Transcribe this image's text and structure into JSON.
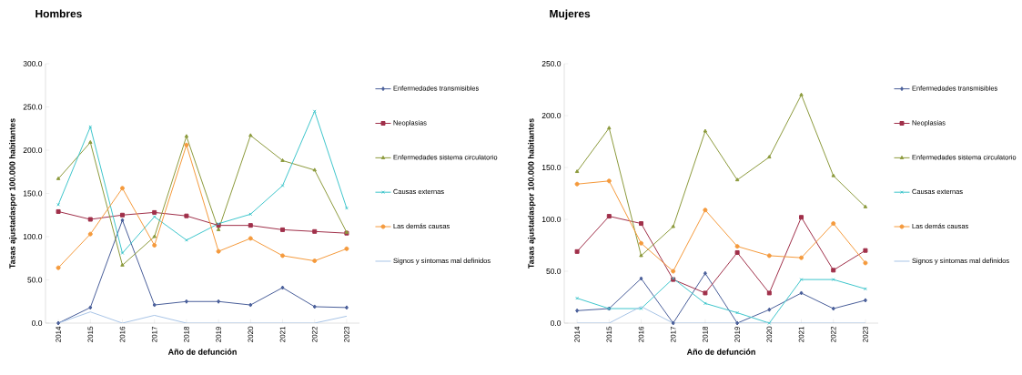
{
  "chart_data": [
    {
      "type": "line",
      "title": "Hombres",
      "xlabel": "Año de defunción",
      "ylabel": "Tasas ajustadaspor 100.000 habitantes",
      "categories": [
        "2014",
        "2015",
        "2016",
        "2017",
        "2018",
        "2019",
        "2020",
        "2021",
        "2022",
        "2023"
      ],
      "ylim": [
        0,
        300
      ],
      "yticks": [
        {
          "value": 0,
          "label": "0.0"
        },
        {
          "value": 50,
          "label": "50.0"
        },
        {
          "value": 100,
          "label": "100.0"
        },
        {
          "value": 150,
          "label": "150.0"
        },
        {
          "value": 200,
          "label": "200.0"
        },
        {
          "value": 250,
          "label": "250.0"
        },
        {
          "value": 300,
          "label": "300.0"
        }
      ],
      "grid": false,
      "legend": "right",
      "series": [
        {
          "name": "Enfermedades transmisibles",
          "color": "#4a5f9a",
          "marker": "diamond",
          "values": [
            0,
            18,
            119,
            21,
            25,
            25,
            21,
            41,
            19,
            18
          ]
        },
        {
          "name": "Neoplasias",
          "color": "#a0304a",
          "marker": "square",
          "values": [
            129,
            120,
            125,
            128,
            124,
            113,
            113,
            108,
            106,
            104
          ]
        },
        {
          "name": "Enfermedades sistema circulatorio",
          "color": "#8c9a3c",
          "marker": "triangle",
          "values": [
            167,
            209,
            67,
            100,
            216,
            108,
            217,
            188,
            177,
            105
          ]
        },
        {
          "name": "Causas externas",
          "color": "#3fc6cc",
          "marker": "cross",
          "values": [
            137,
            227,
            81,
            123,
            96,
            115,
            126,
            159,
            245,
            133
          ]
        },
        {
          "name": "Las demás causas",
          "color": "#f59a3c",
          "marker": "circle",
          "values": [
            64,
            103,
            156,
            90,
            206,
            83,
            98,
            78,
            72,
            86
          ]
        },
        {
          "name": "Signos y síntomas mal definidos",
          "color": "#a8c4e6",
          "marker": "none",
          "values": [
            0,
            13,
            0,
            9,
            0,
            0,
            0,
            0,
            0,
            8
          ]
        }
      ]
    },
    {
      "type": "line",
      "title": "Mujeres",
      "xlabel": "Año de defunción",
      "ylabel": "Tasas ajustadaspor 100.000 habitantes",
      "categories": [
        "2014",
        "2015",
        "2016",
        "2017",
        "2018",
        "2019",
        "2020",
        "2021",
        "2022",
        "2023"
      ],
      "ylim": [
        0,
        250
      ],
      "yticks": [
        {
          "value": 0,
          "label": "0.0"
        },
        {
          "value": 50,
          "label": "50.0"
        },
        {
          "value": 100,
          "label": "100.0"
        },
        {
          "value": 150,
          "label": "150.0"
        },
        {
          "value": 200,
          "label": "200.0"
        },
        {
          "value": 250,
          "label": "250.0"
        }
      ],
      "grid": false,
      "legend": "right",
      "series": [
        {
          "name": "Enfermedades transmisibles",
          "color": "#4a5f9a",
          "marker": "diamond",
          "values": [
            12,
            14,
            43,
            0,
            48,
            0,
            13,
            29,
            14,
            22
          ]
        },
        {
          "name": "Neoplasias",
          "color": "#a0304a",
          "marker": "square",
          "values": [
            69,
            103,
            96,
            42,
            29,
            68,
            29,
            102,
            51,
            70
          ]
        },
        {
          "name": "Enfermedades sistema circulatorio",
          "color": "#8c9a3c",
          "marker": "triangle",
          "values": [
            146,
            188,
            65,
            93,
            185,
            138,
            160,
            220,
            142,
            112
          ]
        },
        {
          "name": "Causas externas",
          "color": "#3fc6cc",
          "marker": "cross",
          "values": [
            24,
            14,
            14,
            43,
            19,
            10,
            0,
            42,
            42,
            33
          ]
        },
        {
          "name": "Las demás causas",
          "color": "#f59a3c",
          "marker": "circle",
          "values": [
            134,
            137,
            77,
            50,
            109,
            74,
            65,
            63,
            96,
            58
          ]
        },
        {
          "name": "Signos y síntomas mal definidos",
          "color": "#a8c4e6",
          "marker": "none",
          "values": [
            0,
            0,
            16,
            0,
            0,
            0,
            0,
            0,
            0,
            0
          ]
        }
      ]
    }
  ]
}
